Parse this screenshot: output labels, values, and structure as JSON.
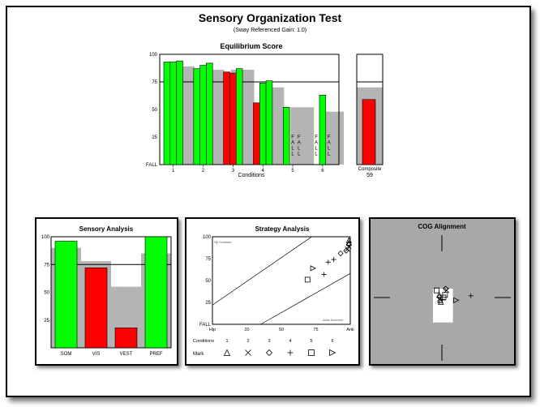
{
  "title": "Sensory Organization Test",
  "subtitle": "(Sway Referenced Gain: 1.0)",
  "chart_data": [
    {
      "type": "bar",
      "title": "Equilibrium Score",
      "xlabel": "Conditions",
      "ylim": [
        0,
        100
      ],
      "yticks": [
        "100",
        "75",
        "50",
        "25"
      ],
      "fall_label": "FALL",
      "norm_line": 75,
      "conditions": [
        {
          "label": "1",
          "trials": [
            93,
            93,
            94
          ],
          "colors": [
            "#00ff00",
            "#00ff00",
            "#00ff00"
          ],
          "norm": 89
        },
        {
          "label": "2",
          "trials": [
            87,
            90,
            92
          ],
          "colors": [
            "#00ff00",
            "#00ff00",
            "#00ff00"
          ],
          "norm": 86
        },
        {
          "label": "3",
          "trials": [
            84,
            83,
            87
          ],
          "colors": [
            "#ff0000",
            "#ff0000",
            "#00ff00"
          ],
          "norm": 86
        },
        {
          "label": "4",
          "trials": [
            56,
            74,
            76
          ],
          "colors": [
            "#ff0000",
            "#00ff00",
            "#00ff00"
          ],
          "norm": 70
        },
        {
          "label": "5",
          "trials": [
            52,
            0,
            0
          ],
          "colors": [
            "#00ff00",
            "#00ff00",
            "#00ff00"
          ],
          "norm": 52
        },
        {
          "label": "6",
          "trials": [
            0,
            63,
            0
          ],
          "colors": [
            "#00ff00",
            "#00ff00",
            "#00ff00"
          ],
          "norm": 48
        }
      ],
      "fall_markers": [
        {
          "condition": 5,
          "trial": 2,
          "text": "F A L L"
        },
        {
          "condition": 5,
          "trial": 3,
          "text": "F A L L"
        },
        {
          "condition": 6,
          "trial": 1,
          "text": "F A L L"
        },
        {
          "condition": 6,
          "trial": 3,
          "text": "F A L L"
        }
      ],
      "composite": {
        "label": "Composite",
        "value": 59,
        "value_label": "59",
        "norm": 70,
        "color": "#ff0000"
      }
    },
    {
      "type": "bar",
      "title": "Sensory Analysis",
      "ylim": [
        0,
        100
      ],
      "yticks": [
        "100",
        "75",
        "50",
        "25"
      ],
      "norm_line": 75,
      "categories": [
        "SOM",
        "VIS",
        "VEST",
        "PREF"
      ],
      "values": [
        96,
        72,
        18,
        100
      ],
      "norms": [
        90,
        78,
        55,
        85
      ],
      "colors": [
        "#00ff00",
        "#ff0000",
        "#ff0000",
        "#00ff00"
      ]
    },
    {
      "type": "scatter",
      "title": "Strategy Analysis",
      "ylim": [
        0,
        100
      ],
      "xlim": [
        0,
        100
      ],
      "yticks": [
        "100",
        "75",
        "50",
        "25",
        "FALL"
      ],
      "xticks": [
        "Hip",
        "20",
        "50",
        "75",
        "Ank"
      ],
      "xtick_values": [
        0,
        25,
        50,
        75,
        100
      ],
      "region_label_top": "Hip Dominant",
      "region_label_bottom": "Ankle Dominant",
      "conditions_label": "Conditions",
      "conditions": [
        "1",
        "2",
        "3",
        "4",
        "5",
        "6"
      ],
      "mark_label": "Mark",
      "mark_symbols": [
        "triangle",
        "x",
        "diamond",
        "plus",
        "square",
        "triangle-right"
      ],
      "points": [
        {
          "x": 69,
          "y": 51,
          "mark": "square"
        },
        {
          "x": 73,
          "y": 64,
          "mark": "triangle-right"
        },
        {
          "x": 81,
          "y": 57,
          "mark": "plus"
        },
        {
          "x": 84,
          "y": 71,
          "mark": "plus"
        },
        {
          "x": 88,
          "y": 74,
          "mark": "plus"
        },
        {
          "x": 93,
          "y": 81,
          "mark": "diamond"
        },
        {
          "x": 97,
          "y": 84,
          "mark": "diamond"
        },
        {
          "x": 98,
          "y": 86,
          "mark": "x"
        },
        {
          "x": 99,
          "y": 89,
          "mark": "x"
        },
        {
          "x": 99,
          "y": 93,
          "mark": "triangle"
        },
        {
          "x": 99,
          "y": 96,
          "mark": "triangle"
        },
        {
          "x": 99,
          "y": 91,
          "mark": "diamond"
        }
      ]
    },
    {
      "type": "scatter",
      "title": "COG Alignment",
      "xlim": [
        -10,
        10
      ],
      "ylim": [
        -10,
        10
      ],
      "points": [
        {
          "x": -1.0,
          "y": 1.6,
          "mark": "square"
        },
        {
          "x": -0.5,
          "y": 0.6,
          "mark": "triangle"
        },
        {
          "x": -0.5,
          "y": 0.1,
          "mark": "diamond"
        },
        {
          "x": -0.4,
          "y": -0.3,
          "mark": "x"
        },
        {
          "x": -0.3,
          "y": -0.6,
          "mark": "triangle"
        },
        {
          "x": -0.2,
          "y": -1.0,
          "mark": "triangle"
        },
        {
          "x": 0.3,
          "y": 0.0,
          "mark": "square"
        },
        {
          "x": 0.1,
          "y": -0.4,
          "mark": "plus"
        },
        {
          "x": 0.6,
          "y": 0.6,
          "mark": "square"
        },
        {
          "x": 0.7,
          "y": 2.0,
          "mark": "diamond"
        },
        {
          "x": 0.9,
          "y": 1.6,
          "mark": "x"
        },
        {
          "x": 2.7,
          "y": -0.6,
          "mark": "triangle-right"
        },
        {
          "x": 5.5,
          "y": 0.4,
          "mark": "plus"
        }
      ]
    }
  ]
}
